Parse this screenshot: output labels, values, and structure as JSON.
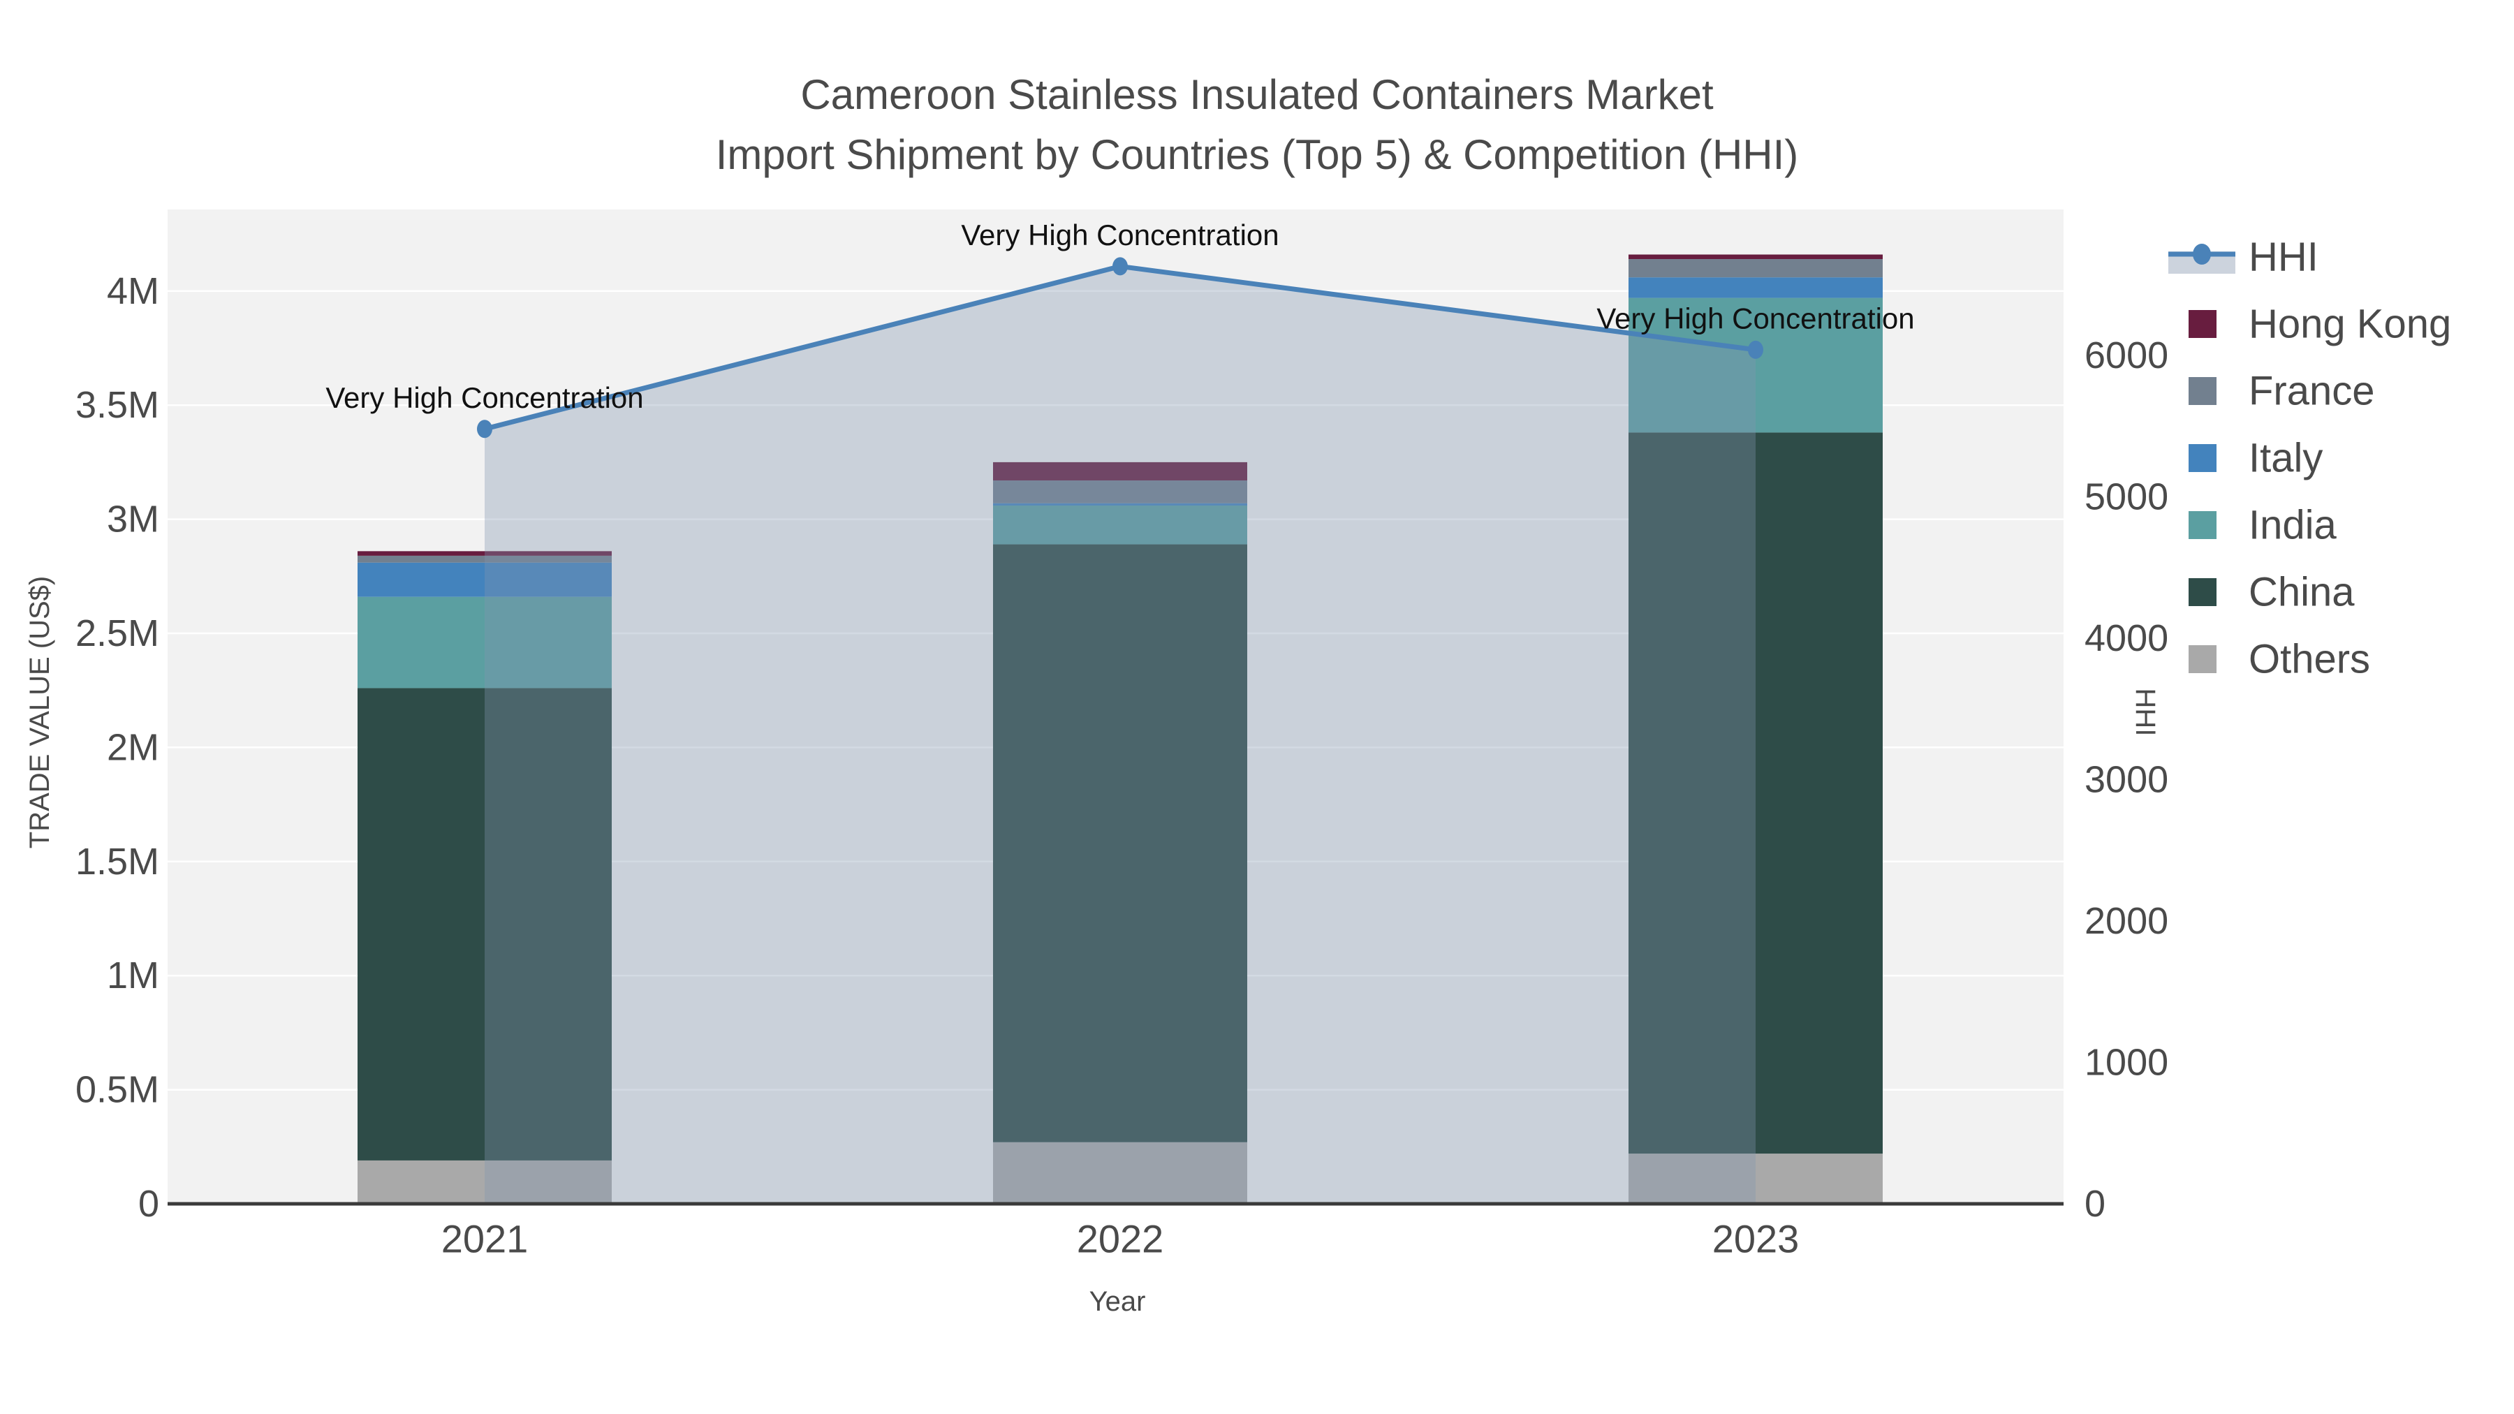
{
  "header": {
    "line1": "Cameroon Stainless Insulated Containers Market",
    "line2": "Import Shipment by Countries (Top 5) & Competition (HHI)"
  },
  "chart_data": {
    "type": "bar",
    "subtype": "stacked-bar-with-line",
    "categories": [
      "2021",
      "2022",
      "2023"
    ],
    "bar_series": [
      {
        "name": "Others",
        "color": "#a9a9a9",
        "values": [
          0.19,
          0.27,
          0.22
        ]
      },
      {
        "name": "China",
        "color": "#2e4c48",
        "values": [
          2.07,
          2.62,
          3.16
        ]
      },
      {
        "name": "India",
        "color": "#5b9fa1",
        "values": [
          0.4,
          0.17,
          0.59
        ]
      },
      {
        "name": "Italy",
        "color": "#4383bd",
        "values": [
          0.15,
          0.01,
          0.09
        ]
      },
      {
        "name": "France",
        "color": "#72808f",
        "values": [
          0.03,
          0.1,
          0.08
        ]
      },
      {
        "name": "Hong Kong",
        "color": "#681d3f",
        "values": [
          0.02,
          0.08,
          0.02
        ]
      }
    ],
    "line_series": {
      "name": "HHI",
      "color": "#4a82b8",
      "area_fill": "rgba(130,150,175,0.35)",
      "legend_band": "#ccd3dd",
      "values": [
        5480,
        6630,
        6040
      ]
    },
    "annotations": [
      "Very High Concentration",
      "Very High Concentration",
      "Very High Concentration"
    ],
    "y_left": {
      "title": "TRADE VALUE (US$)",
      "ticks": [
        "0",
        "0.5M",
        "1M",
        "1.5M",
        "2M",
        "2.5M",
        "3M",
        "3.5M",
        "4M"
      ],
      "tick_values_m": [
        0,
        0.5,
        1,
        1.5,
        2,
        2.5,
        3,
        3.5,
        4
      ],
      "max_m": 4.38
    },
    "y_right": {
      "title": "HHI",
      "ticks": [
        "0",
        "1000",
        "2000",
        "3000",
        "4000",
        "5000",
        "6000"
      ],
      "tick_values": [
        0,
        1000,
        2000,
        3000,
        4000,
        5000,
        6000
      ],
      "max": 7030
    },
    "x_axis": {
      "title": "Year"
    },
    "legend_order": [
      "HHI",
      "Hong Kong",
      "France",
      "Italy",
      "India",
      "China",
      "Others"
    ],
    "grid": true,
    "legend_position": "right",
    "plot_bg": "#f2f2f2",
    "grid_color": "#ffffff",
    "axis_line_color": "#3a3a3a",
    "text_color": "#4a4a4a",
    "annotation_color": "#111111"
  }
}
